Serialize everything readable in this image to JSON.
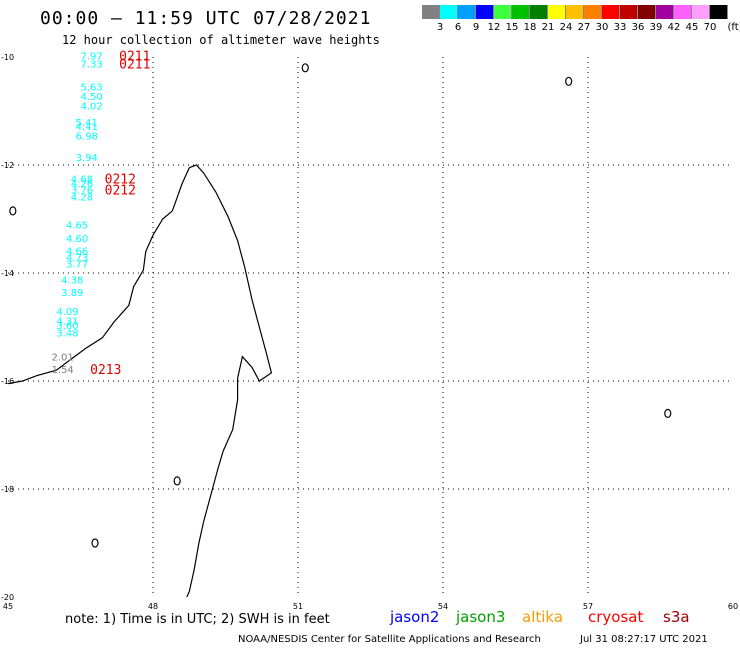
{
  "header": {
    "title": "00:00 – 11:59 UTC 07/28/2021",
    "subtitle": "12 hour collection of altimeter wave heights"
  },
  "legend": {
    "unit": "(ft)",
    "swatches": [
      {
        "color": "#808080",
        "label": "3"
      },
      {
        "color": "#00ffff",
        "label": "6"
      },
      {
        "color": "#00a0ff",
        "label": "9"
      },
      {
        "color": "#0000ff",
        "label": "12"
      },
      {
        "color": "#40ff40",
        "label": "15"
      },
      {
        "color": "#00c000",
        "label": "18"
      },
      {
        "color": "#008000",
        "label": "21"
      },
      {
        "color": "#ffff00",
        "label": "24"
      },
      {
        "color": "#ffc000",
        "label": "27"
      },
      {
        "color": "#ff8000",
        "label": "30"
      },
      {
        "color": "#ff0000",
        "label": "33"
      },
      {
        "color": "#c00000",
        "label": "36"
      },
      {
        "color": "#800000",
        "label": "39"
      },
      {
        "color": "#a000a0",
        "label": "42"
      },
      {
        "color": "#ff60ff",
        "label": "45"
      },
      {
        "color": "#ffa0ff",
        "label": "70"
      },
      {
        "color": "#000000",
        "label": ""
      }
    ]
  },
  "map": {
    "lon_range": [
      45,
      60
    ],
    "lat_range": [
      -20,
      -10
    ],
    "lon_ticks": [
      "45",
      "48",
      "51",
      "54",
      "57",
      "60"
    ],
    "lat_ticks": [
      "-10",
      "-12",
      "-14",
      "-16",
      "-18",
      "-20"
    ],
    "measurements": [
      {
        "lon": 46.5,
        "lat": -9.97,
        "value": "7.97",
        "color": "#00ffff"
      },
      {
        "lon": 46.5,
        "lat": -10.12,
        "value": "7.33",
        "color": "#00ffff"
      },
      {
        "lon": 46.5,
        "lat": -10.55,
        "value": "5.63",
        "color": "#00ffff"
      },
      {
        "lon": 46.5,
        "lat": -10.72,
        "value": "4.50",
        "color": "#00ffff"
      },
      {
        "lon": 46.5,
        "lat": -10.9,
        "value": "4.02",
        "color": "#00ffff"
      },
      {
        "lon": 46.4,
        "lat": -11.2,
        "value": "5.41",
        "color": "#00ffff"
      },
      {
        "lon": 46.4,
        "lat": -11.28,
        "value": "4.41",
        "color": "#00ffff"
      },
      {
        "lon": 46.4,
        "lat": -11.45,
        "value": "6.98",
        "color": "#00ffff"
      },
      {
        "lon": 46.4,
        "lat": -11.85,
        "value": "3.94",
        "color": "#00ffff"
      },
      {
        "lon": 46.3,
        "lat": -12.25,
        "value": "4.68",
        "color": "#00ffff"
      },
      {
        "lon": 46.3,
        "lat": -12.33,
        "value": "4.26",
        "color": "#00ffff"
      },
      {
        "lon": 46.3,
        "lat": -12.45,
        "value": "3.76",
        "color": "#00ffff"
      },
      {
        "lon": 46.3,
        "lat": -12.58,
        "value": "4.28",
        "color": "#00ffff"
      },
      {
        "lon": 46.2,
        "lat": -13.1,
        "value": "4.65",
        "color": "#00ffff"
      },
      {
        "lon": 46.2,
        "lat": -13.35,
        "value": "4.60",
        "color": "#00ffff"
      },
      {
        "lon": 46.2,
        "lat": -13.58,
        "value": "4.66",
        "color": "#00ffff"
      },
      {
        "lon": 46.2,
        "lat": -13.7,
        "value": "4.73",
        "color": "#00ffff"
      },
      {
        "lon": 46.2,
        "lat": -13.82,
        "value": "3.77",
        "color": "#00ffff"
      },
      {
        "lon": 46.1,
        "lat": -14.12,
        "value": "4.38",
        "color": "#00ffff"
      },
      {
        "lon": 46.1,
        "lat": -14.35,
        "value": "3.89",
        "color": "#00ffff"
      },
      {
        "lon": 46.0,
        "lat": -14.7,
        "value": "4.09",
        "color": "#00ffff"
      },
      {
        "lon": 46.0,
        "lat": -14.88,
        "value": "4.31",
        "color": "#00ffff"
      },
      {
        "lon": 46.0,
        "lat": -14.96,
        "value": "3.60",
        "color": "#00ffff"
      },
      {
        "lon": 46.0,
        "lat": -15.1,
        "value": "3.48",
        "color": "#00ffff"
      },
      {
        "lon": 45.9,
        "lat": -15.55,
        "value": "2.01",
        "color": "#808080"
      },
      {
        "lon": 45.9,
        "lat": -15.78,
        "value": "1.54",
        "color": "#808080"
      }
    ],
    "pass_labels": [
      {
        "lon": 47.3,
        "lat": -9.97,
        "text": "0211"
      },
      {
        "lon": 47.3,
        "lat": -10.12,
        "text": "0211"
      },
      {
        "lon": 47.0,
        "lat": -12.25,
        "text": "0212"
      },
      {
        "lon": 47.0,
        "lat": -12.45,
        "text": "0212"
      },
      {
        "lon": 46.7,
        "lat": -15.78,
        "text": "0213"
      }
    ]
  },
  "footer": {
    "note": "note:  1) Time is in UTC;  2) SWH is in feet",
    "satellites": [
      {
        "name": "jason2",
        "color": "#0000ff"
      },
      {
        "name": "jason3",
        "color": "#00a000"
      },
      {
        "name": "altika",
        "color": "#ff9900"
      },
      {
        "name": "cryosat",
        "color": "#ff0000"
      },
      {
        "name": "s3a",
        "color": "#a00000"
      }
    ],
    "credit": "NOAA/NESDIS Center for Satellite Applications and Research",
    "generated": "Jul 31 08:27:17 UTC 2021"
  }
}
